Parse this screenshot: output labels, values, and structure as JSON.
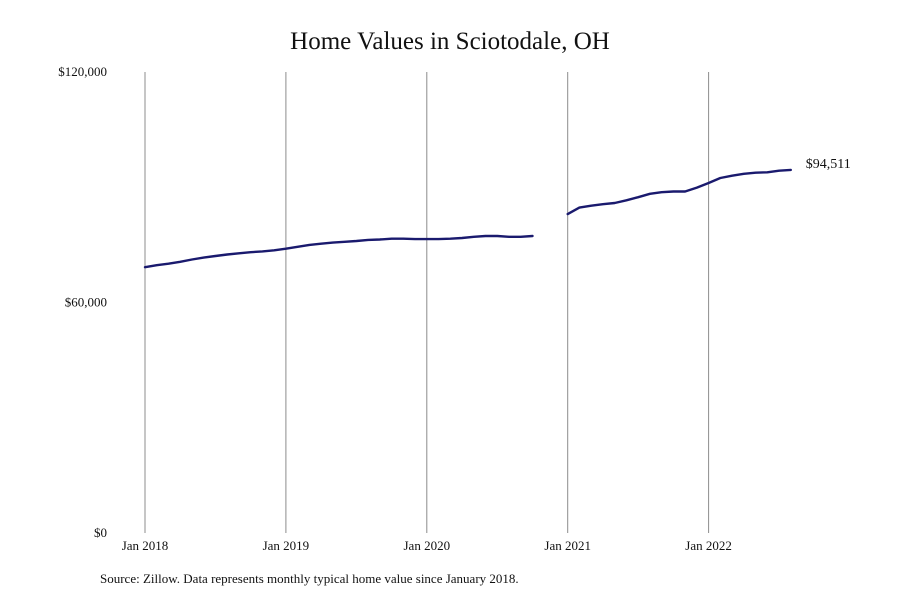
{
  "chart_data": {
    "type": "line",
    "title": "Home Values in Sciotodale, OH",
    "xlabel": "",
    "ylabel": "",
    "x_tick_labels": [
      "Jan 2018",
      "Jan 2019",
      "Jan 2020",
      "Jan 2021",
      "Jan 2022"
    ],
    "y_tick_labels": [
      "$0",
      "$60,000",
      "$120,000"
    ],
    "ylim": [
      0,
      120000
    ],
    "grid": "vertical",
    "line_color": "#1a1a6e",
    "grid_color": "#8c8c8c",
    "series": [
      {
        "segments": [
          {
            "points": [
              {
                "date": "2018-01",
                "value": 69200
              },
              {
                "date": "2018-02",
                "value": 69700
              },
              {
                "date": "2018-03",
                "value": 70100
              },
              {
                "date": "2018-04",
                "value": 70600
              },
              {
                "date": "2018-05",
                "value": 71200
              },
              {
                "date": "2018-06",
                "value": 71700
              },
              {
                "date": "2018-07",
                "value": 72100
              },
              {
                "date": "2018-08",
                "value": 72500
              },
              {
                "date": "2018-09",
                "value": 72800
              },
              {
                "date": "2018-10",
                "value": 73100
              },
              {
                "date": "2018-11",
                "value": 73300
              },
              {
                "date": "2018-12",
                "value": 73600
              },
              {
                "date": "2019-01",
                "value": 74000
              },
              {
                "date": "2019-02",
                "value": 74500
              },
              {
                "date": "2019-03",
                "value": 75000
              },
              {
                "date": "2019-04",
                "value": 75300
              },
              {
                "date": "2019-05",
                "value": 75600
              },
              {
                "date": "2019-06",
                "value": 75800
              },
              {
                "date": "2019-07",
                "value": 76000
              },
              {
                "date": "2019-08",
                "value": 76300
              },
              {
                "date": "2019-09",
                "value": 76400
              },
              {
                "date": "2019-10",
                "value": 76600
              },
              {
                "date": "2019-11",
                "value": 76600
              },
              {
                "date": "2019-12",
                "value": 76500
              },
              {
                "date": "2020-01",
                "value": 76500
              },
              {
                "date": "2020-02",
                "value": 76500
              },
              {
                "date": "2020-03",
                "value": 76600
              },
              {
                "date": "2020-04",
                "value": 76800
              },
              {
                "date": "2020-05",
                "value": 77100
              },
              {
                "date": "2020-06",
                "value": 77300
              },
              {
                "date": "2020-07",
                "value": 77300
              },
              {
                "date": "2020-08",
                "value": 77100
              },
              {
                "date": "2020-09",
                "value": 77100
              },
              {
                "date": "2020-10",
                "value": 77300
              }
            ]
          },
          {
            "points": [
              {
                "date": "2021-01",
                "value": 83000
              },
              {
                "date": "2021-02",
                "value": 84700
              },
              {
                "date": "2021-03",
                "value": 85200
              },
              {
                "date": "2021-04",
                "value": 85600
              },
              {
                "date": "2021-05",
                "value": 85900
              },
              {
                "date": "2021-06",
                "value": 86600
              },
              {
                "date": "2021-07",
                "value": 87400
              },
              {
                "date": "2021-08",
                "value": 88300
              },
              {
                "date": "2021-09",
                "value": 88700
              },
              {
                "date": "2021-10",
                "value": 88900
              },
              {
                "date": "2021-11",
                "value": 88900
              },
              {
                "date": "2021-12",
                "value": 89900
              },
              {
                "date": "2022-01",
                "value": 91100
              },
              {
                "date": "2022-02",
                "value": 92400
              },
              {
                "date": "2022-03",
                "value": 93000
              },
              {
                "date": "2022-04",
                "value": 93500
              },
              {
                "date": "2022-05",
                "value": 93800
              },
              {
                "date": "2022-06",
                "value": 93900
              },
              {
                "date": "2022-07",
                "value": 94300
              },
              {
                "date": "2022-08",
                "value": 94511
              }
            ]
          }
        ]
      }
    ],
    "end_label": "$94,511"
  },
  "source_note": "Source: Zillow. Data represents monthly typical home value since January 2018."
}
